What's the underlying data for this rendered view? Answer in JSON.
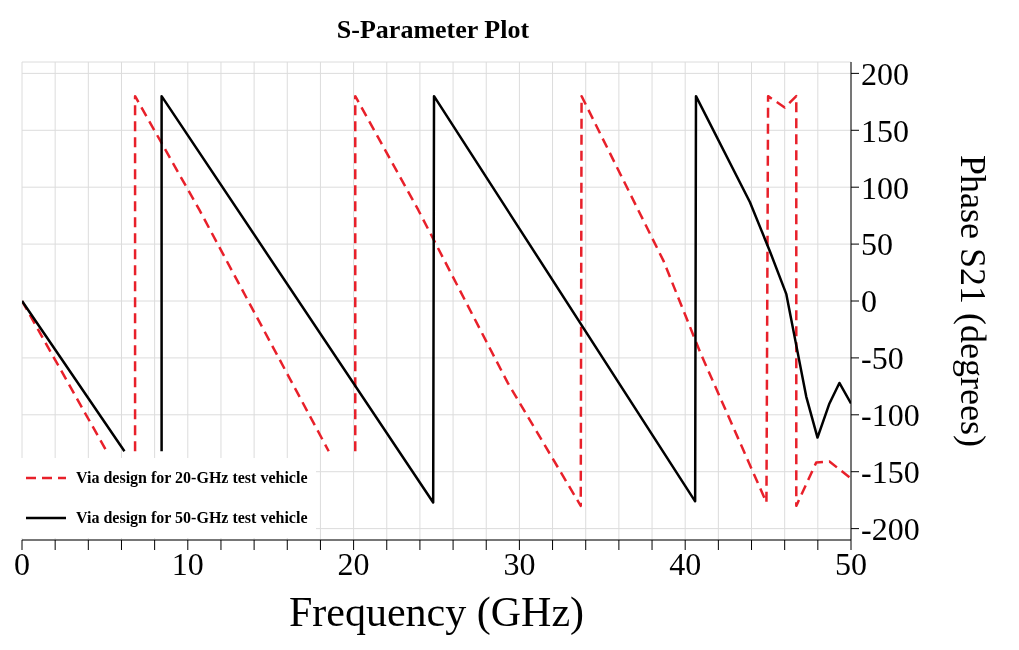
{
  "chart_data": {
    "type": "line",
    "title": "S-Parameter Plot",
    "xlabel": "Frequency (GHz)",
    "ylabel": "Phase S21 (degrees)",
    "xlim": [
      0,
      50
    ],
    "xticks": [
      0,
      {
        "value": 2,
        "label": null
      },
      {
        "value": 4,
        "label": null
      },
      {
        "value": 6,
        "label": null
      },
      {
        "value": 8,
        "label": null
      },
      10,
      {
        "value": 12,
        "label": null
      },
      {
        "value": 14,
        "label": null
      },
      {
        "value": 16,
        "label": null
      },
      {
        "value": 18,
        "label": null
      },
      20,
      {
        "value": 22,
        "label": null
      },
      {
        "value": 24,
        "label": null
      },
      {
        "value": 26,
        "label": null
      },
      {
        "value": 28,
        "label": null
      },
      30,
      {
        "value": 32,
        "label": null
      },
      {
        "value": 34,
        "label": null
      },
      {
        "value": 36,
        "label": null
      },
      {
        "value": 38,
        "label": null
      },
      40,
      {
        "value": 42,
        "label": null
      },
      {
        "value": 44,
        "label": null
      },
      {
        "value": 46,
        "label": null
      },
      {
        "value": 48,
        "label": null
      },
      50
    ],
    "ylim": [
      -210,
      210
    ],
    "yticks": [
      -200,
      -150,
      -100,
      -50,
      0,
      50,
      100,
      150,
      200
    ],
    "grid": true,
    "legend": "bottom left",
    "series": [
      {
        "name": "Via design for 20-GHz test vehicle",
        "color": "#e8202a",
        "line_style": "dashed",
        "x": [
          0,
          5.1,
          5.5,
          6.82,
          6.82,
          10.7,
          18.5,
          19,
          20.1,
          20.1,
          23.9,
          29.3,
          33.7,
          33.75,
          38.7,
          40.9,
          44.9,
          45,
          46,
          46.7,
          46.7,
          47.9,
          48.7,
          50
        ],
        "values": [
          0,
          -132,
          null,
          -132,
          180,
          80,
          -132,
          null,
          -132,
          180,
          80,
          -72,
          -180,
          180,
          35,
          -45,
          -177,
          180,
          170,
          180,
          -180,
          -142,
          -141,
          -156
        ]
      },
      {
        "name": "Via design for 50-GHz test vehicle",
        "color": "#000000",
        "line_style": "solid",
        "x": [
          0,
          6.18,
          7,
          8.42,
          8.42,
          24.8,
          24.85,
          40.6,
          40.65,
          43.9,
          45.1,
          46.1,
          46.7,
          47.3,
          47.98,
          48.7,
          49.3,
          50
        ],
        "values": [
          0,
          -132,
          null,
          -132,
          180,
          -177,
          180,
          -176,
          180,
          87,
          44,
          6,
          -39,
          -84,
          -120,
          -90,
          -72,
          -90
        ]
      }
    ]
  }
}
